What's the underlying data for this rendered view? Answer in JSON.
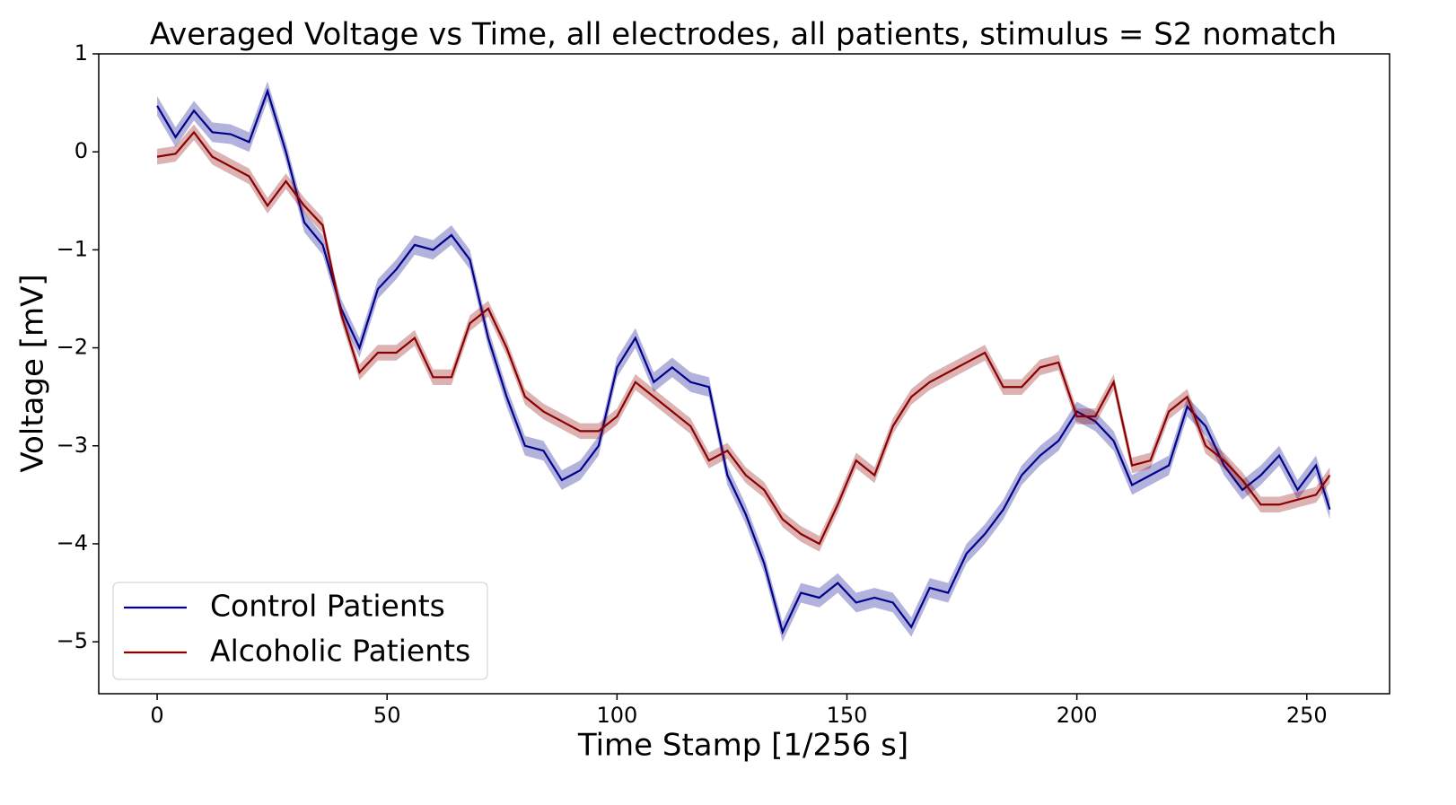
{
  "chart_data": {
    "type": "line",
    "title": "Averaged Voltage vs Time, all electrodes, all patients, stimulus = S2 nomatch",
    "x_label": "Time Stamp [1/256 s]",
    "y_label": "Voltage [mV]",
    "x": [
      0,
      4,
      8,
      12,
      16,
      20,
      24,
      28,
      32,
      36,
      40,
      44,
      48,
      52,
      56,
      60,
      64,
      68,
      72,
      76,
      80,
      84,
      88,
      92,
      96,
      100,
      104,
      108,
      112,
      116,
      120,
      124,
      128,
      132,
      136,
      140,
      144,
      148,
      152,
      156,
      160,
      164,
      168,
      172,
      176,
      180,
      184,
      188,
      192,
      196,
      200,
      204,
      208,
      212,
      216,
      220,
      224,
      228,
      232,
      236,
      240,
      244,
      248,
      252,
      255
    ],
    "series": [
      {
        "name": "Control Patients",
        "color": "#00008b",
        "error": 0.1,
        "values": [
          0.47,
          0.15,
          0.42,
          0.2,
          0.18,
          0.1,
          0.62,
          0.0,
          -0.72,
          -0.95,
          -1.6,
          -2.0,
          -1.4,
          -1.2,
          -0.95,
          -1.0,
          -0.85,
          -1.1,
          -1.9,
          -2.5,
          -3.0,
          -3.05,
          -3.35,
          -3.25,
          -3.0,
          -2.2,
          -1.9,
          -2.35,
          -2.2,
          -2.35,
          -2.4,
          -3.3,
          -3.7,
          -4.2,
          -4.9,
          -4.5,
          -4.55,
          -4.4,
          -4.6,
          -4.55,
          -4.6,
          -4.85,
          -4.45,
          -4.5,
          -4.1,
          -3.9,
          -3.65,
          -3.3,
          -3.1,
          -2.95,
          -2.65,
          -2.75,
          -2.95,
          -3.4,
          -3.3,
          -3.2,
          -2.6,
          -2.8,
          -3.2,
          -3.45,
          -3.3,
          -3.1,
          -3.45,
          -3.2,
          -3.65
        ]
      },
      {
        "name": "Alcoholic Patients",
        "color": "#8b0000",
        "error": 0.08,
        "values": [
          -0.05,
          -0.02,
          0.2,
          -0.05,
          -0.15,
          -0.25,
          -0.55,
          -0.3,
          -0.55,
          -0.75,
          -1.65,
          -2.25,
          -2.05,
          -2.05,
          -1.9,
          -2.3,
          -2.3,
          -1.75,
          -1.6,
          -2.0,
          -2.5,
          -2.65,
          -2.75,
          -2.85,
          -2.85,
          -2.7,
          -2.35,
          -2.5,
          -2.65,
          -2.8,
          -3.15,
          -3.05,
          -3.3,
          -3.45,
          -3.75,
          -3.9,
          -4.0,
          -3.6,
          -3.15,
          -3.3,
          -2.8,
          -2.5,
          -2.35,
          -2.25,
          -2.15,
          -2.05,
          -2.4,
          -2.4,
          -2.2,
          -2.15,
          -2.7,
          -2.7,
          -2.35,
          -3.2,
          -3.15,
          -2.65,
          -2.5,
          -3.0,
          -3.15,
          -3.35,
          -3.6,
          -3.6,
          -3.55,
          -3.5,
          -3.3
        ]
      }
    ],
    "xlim": [
      -12.7,
      268
    ],
    "ylim": [
      -5.53,
      1.0
    ],
    "xticks": [
      0,
      50,
      100,
      150,
      200,
      250
    ],
    "yticks": [
      {
        "value": -5,
        "label": "−5"
      },
      {
        "value": -4,
        "label": "−4"
      },
      {
        "value": -3,
        "label": "−3"
      },
      {
        "value": -2,
        "label": "−2"
      },
      {
        "value": -1,
        "label": "−1"
      },
      0,
      1
    ],
    "grid": false,
    "legend": "lower left"
  }
}
